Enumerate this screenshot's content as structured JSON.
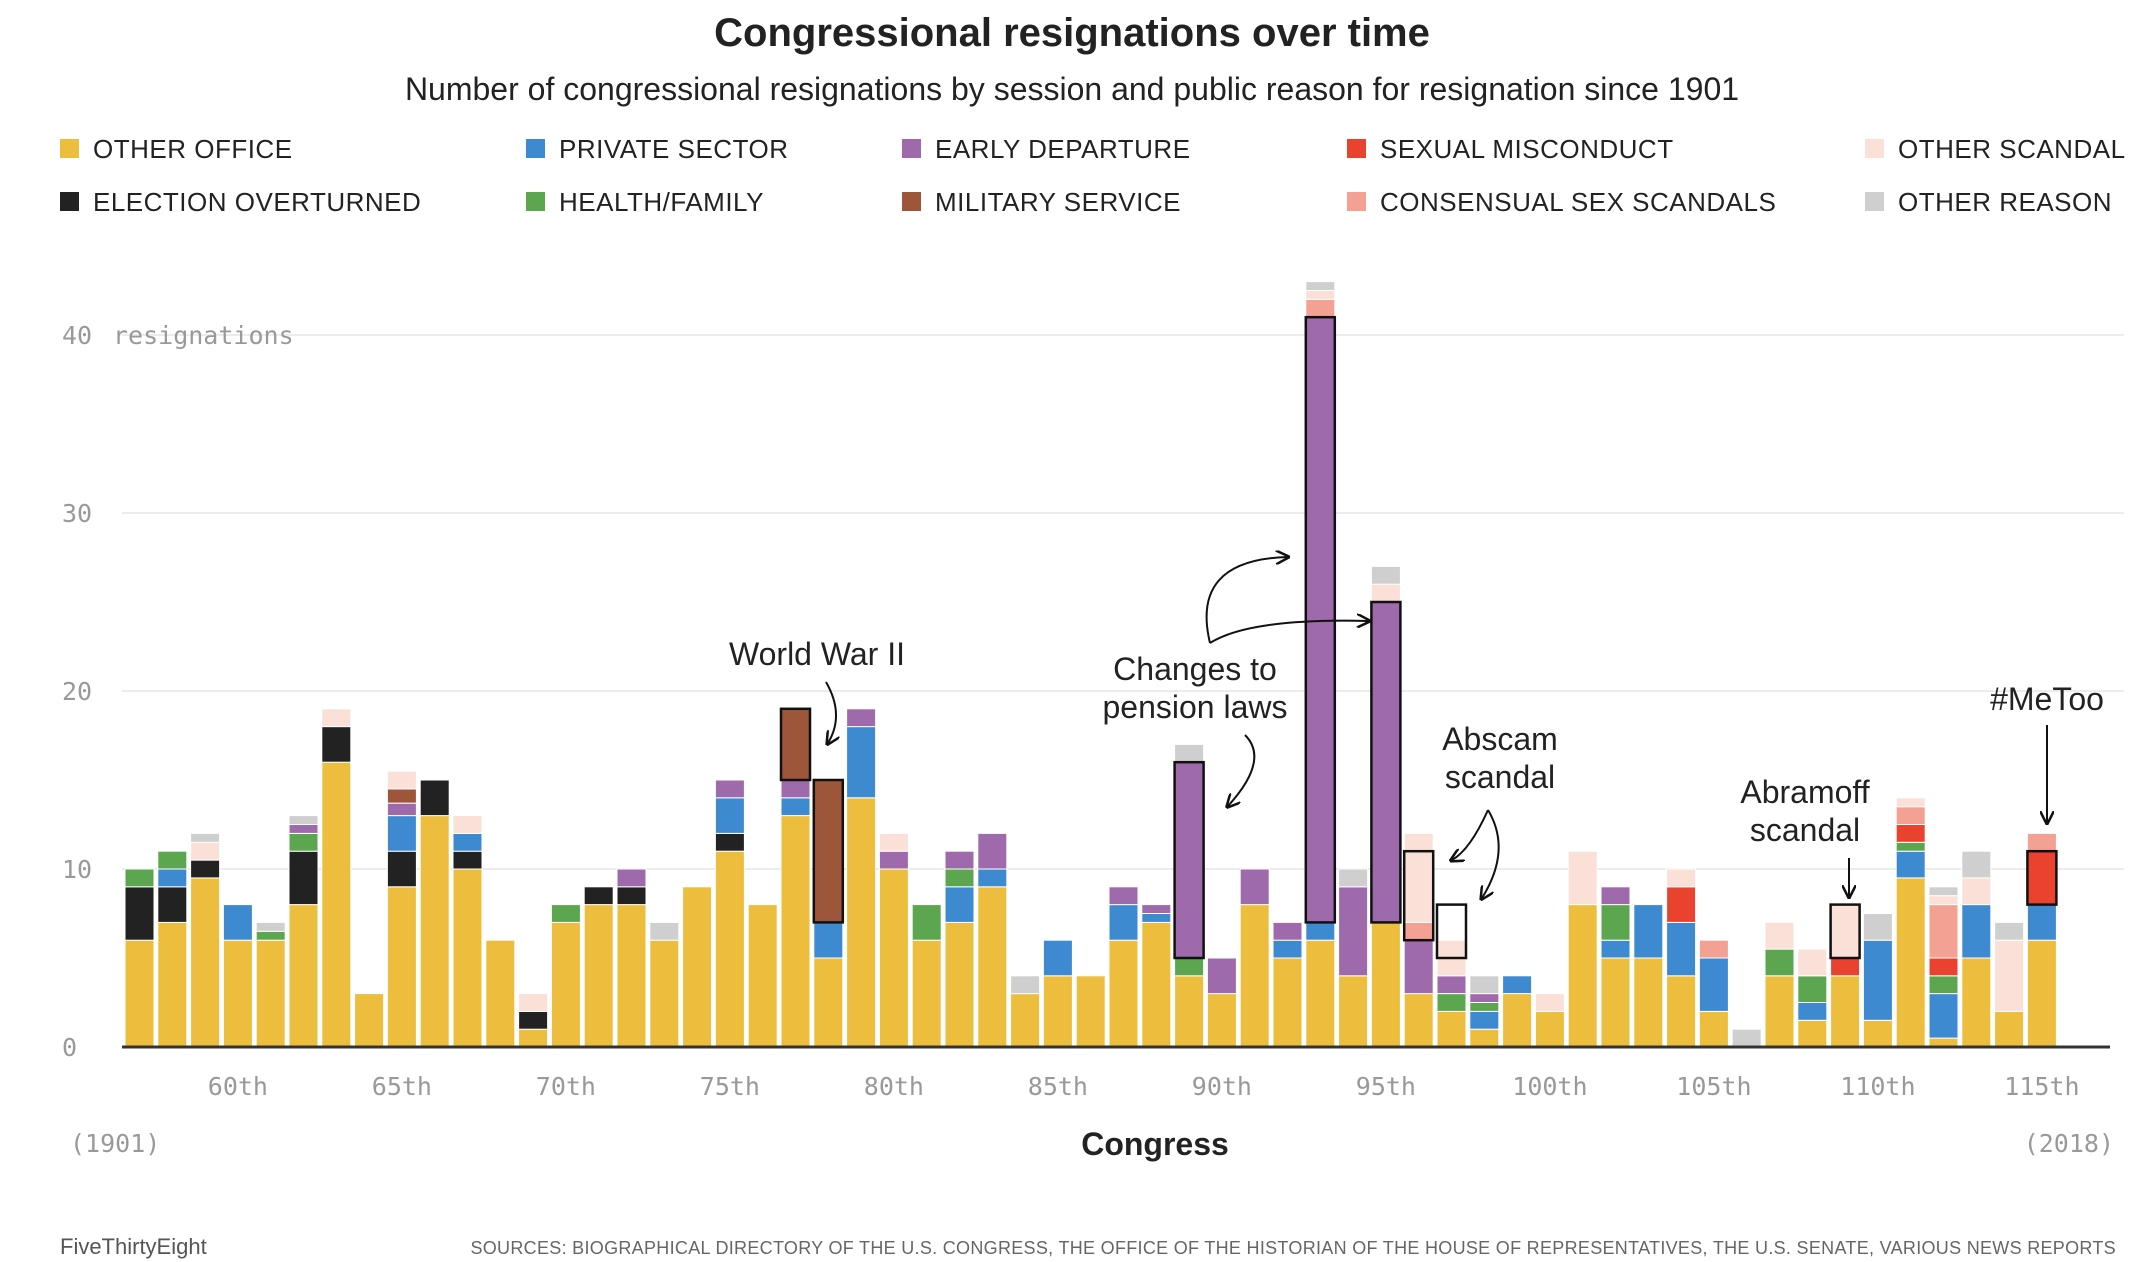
{
  "chart_data": {
    "type": "bar",
    "stacked": true,
    "title": "Congressional resignations over time",
    "subtitle": "Number of congressional resignations by session and public reason for resignation since 1901",
    "xlabel": "Congress",
    "ylabel_inline": "resignations",
    "ylim": [
      0,
      42
    ],
    "yticks": [
      0,
      10,
      20,
      30,
      40
    ],
    "start_label": "(1901)",
    "end_label": "(2018)",
    "x": [
      57,
      58,
      59,
      60,
      61,
      62,
      63,
      64,
      65,
      66,
      67,
      68,
      69,
      70,
      71,
      72,
      73,
      74,
      75,
      76,
      77,
      78,
      79,
      80,
      81,
      82,
      83,
      84,
      85,
      86,
      87,
      88,
      89,
      90,
      91,
      92,
      93,
      94,
      95,
      96,
      97,
      98,
      99,
      100,
      101,
      102,
      103,
      104,
      105,
      106,
      107,
      108,
      109,
      110,
      111,
      112,
      113,
      114,
      115
    ],
    "x_tick_labels": [
      {
        "x": 60,
        "label": "60th"
      },
      {
        "x": 65,
        "label": "65th"
      },
      {
        "x": 70,
        "label": "70th"
      },
      {
        "x": 75,
        "label": "75th"
      },
      {
        "x": 80,
        "label": "80th"
      },
      {
        "x": 85,
        "label": "85th"
      },
      {
        "x": 90,
        "label": "90th"
      },
      {
        "x": 95,
        "label": "95th"
      },
      {
        "x": 100,
        "label": "100th"
      },
      {
        "x": 105,
        "label": "105th"
      },
      {
        "x": 110,
        "label": "110th"
      },
      {
        "x": 115,
        "label": "115th"
      }
    ],
    "series": [
      {
        "key": "other_office",
        "name": "OTHER OFFICE",
        "color": "#edbd3e",
        "values": [
          6,
          7,
          9.5,
          6,
          6,
          8,
          16,
          3,
          9,
          13,
          10,
          6,
          1,
          7,
          8,
          8,
          6,
          9,
          11,
          8,
          13,
          5,
          14,
          10,
          6,
          7,
          9,
          3,
          4,
          4,
          6,
          7,
          4,
          3,
          8,
          5,
          6,
          4,
          7,
          3,
          2,
          1,
          3,
          2,
          8,
          5,
          5,
          4,
          2,
          0,
          4,
          1.5,
          4,
          1.5,
          9.5,
          0.5,
          5,
          2,
          6
        ]
      },
      {
        "key": "election_overturned",
        "name": "ELECTION OVERTURNED",
        "color": "#222222",
        "values": [
          3,
          2,
          1,
          0,
          0,
          3,
          2,
          0,
          2,
          2,
          1,
          0,
          1,
          0,
          1,
          1,
          0,
          0,
          1,
          0,
          0,
          0,
          0,
          0,
          0,
          0,
          0,
          0,
          0,
          0,
          0,
          0,
          0,
          0,
          0,
          0,
          0,
          0,
          0,
          0,
          0,
          0,
          0,
          0,
          0,
          0,
          0,
          0,
          0,
          0,
          0,
          0,
          0,
          0,
          0,
          0,
          0,
          0,
          0
        ]
      },
      {
        "key": "private_sector",
        "name": "PRIVATE SECTOR",
        "color": "#3d8ad0",
        "values": [
          0,
          1,
          0,
          2,
          0,
          0,
          0,
          0,
          2,
          0,
          1,
          0,
          0,
          0,
          0,
          0,
          0,
          0,
          2,
          0,
          1,
          2,
          4,
          0,
          0,
          2,
          1,
          0,
          2,
          0,
          2,
          0.5,
          0,
          0,
          0,
          1,
          1,
          0,
          0,
          0,
          0,
          1,
          1,
          0,
          0,
          1,
          3,
          3,
          3,
          0,
          0,
          1,
          0,
          4.5,
          1.5,
          2.5,
          3,
          0,
          2
        ]
      },
      {
        "key": "health_family",
        "name": "HEALTH/FAMILY",
        "color": "#5ba64f",
        "values": [
          1,
          1,
          0,
          0,
          0.5,
          1,
          0,
          0,
          0,
          0,
          0,
          0,
          0,
          1,
          0,
          0,
          0,
          0,
          0,
          0,
          0,
          0,
          0,
          0,
          2,
          1,
          0,
          0,
          0,
          0,
          0,
          0,
          1,
          0,
          0,
          0,
          0,
          0,
          0,
          0,
          1,
          0.5,
          0,
          0,
          0,
          2,
          0,
          0,
          0,
          0,
          1.5,
          1.5,
          0,
          0,
          0.5,
          1,
          0,
          0,
          0
        ]
      },
      {
        "key": "early_departure",
        "name": "EARLY DEPARTURE",
        "color": "#9f6aab",
        "values": [
          0,
          0,
          0,
          0,
          0,
          0.5,
          0,
          0,
          0.7,
          0,
          0,
          0,
          0,
          0,
          0,
          1,
          0,
          0,
          1,
          0,
          1,
          0,
          1,
          1,
          0,
          1,
          2,
          0,
          0,
          0,
          1,
          0.5,
          11,
          2,
          2,
          1,
          34,
          5,
          18,
          3,
          1,
          0.5,
          0,
          0,
          0,
          1,
          0,
          0,
          0,
          0,
          0,
          0,
          0,
          0,
          0,
          0,
          0,
          0,
          0
        ]
      },
      {
        "key": "military_service",
        "name": "MILITARY SERVICE",
        "color": "#9e563b",
        "values": [
          0,
          0,
          0,
          0,
          0,
          0,
          0,
          0,
          0.8,
          0,
          0,
          0,
          0,
          0,
          0,
          0,
          0,
          0,
          0,
          0,
          4,
          8,
          0,
          0,
          0,
          0,
          0,
          0,
          0,
          0,
          0,
          0,
          0,
          0,
          0,
          0,
          0,
          0,
          0,
          0,
          0,
          0,
          0,
          0,
          0,
          0,
          0,
          0,
          0,
          0,
          0,
          0,
          0,
          0,
          0,
          0,
          0,
          0,
          0
        ]
      },
      {
        "key": "sexual_misconduct",
        "name": "SEXUAL MISCONDUCT",
        "color": "#e9422e",
        "values": [
          0,
          0,
          0,
          0,
          0,
          0,
          0,
          0,
          0,
          0,
          0,
          0,
          0,
          0,
          0,
          0,
          0,
          0,
          0,
          0,
          0,
          0,
          0,
          0,
          0,
          0,
          0,
          0,
          0,
          0,
          0,
          0,
          0,
          0,
          0,
          0,
          0,
          0,
          0,
          0,
          0,
          0,
          0,
          0,
          0,
          0,
          0,
          2,
          0,
          0,
          0,
          0,
          1,
          0,
          1,
          1,
          0,
          0,
          3
        ]
      },
      {
        "key": "consensual_sex_scandals",
        "name": "CONSENSUAL SEX SCANDALS",
        "color": "#f2a192",
        "values": [
          0,
          0,
          0,
          0,
          0,
          0,
          0,
          0,
          0,
          0,
          0,
          0,
          0,
          0,
          0,
          0,
          0,
          0,
          0,
          0,
          0,
          0,
          0,
          0,
          0,
          0,
          0,
          0,
          0,
          0,
          0,
          0,
          0,
          0,
          0,
          0,
          1,
          0,
          0,
          1,
          0,
          0,
          0,
          0,
          0,
          0,
          0,
          0,
          1,
          0,
          0,
          0,
          0,
          0,
          1,
          3,
          0,
          0,
          1
        ]
      },
      {
        "key": "other_scandal",
        "name": "OTHER SCANDAL",
        "color": "#fae0d6",
        "values": [
          0,
          0,
          1,
          0,
          0,
          0,
          1,
          0,
          1,
          0,
          1,
          0,
          1,
          0,
          0,
          0,
          0,
          0,
          0,
          0,
          0,
          0,
          0,
          1,
          0,
          0,
          0,
          0,
          0,
          0,
          0,
          0,
          0,
          0,
          0,
          0,
          0.5,
          0,
          1,
          5,
          2,
          0,
          0,
          1,
          3,
          0,
          0,
          1,
          0,
          0,
          1.5,
          1.5,
          3,
          0,
          0.5,
          0.5,
          1.5,
          4,
          0
        ]
      },
      {
        "key": "other_reason",
        "name": "OTHER REASON",
        "color": "#cfcfcf",
        "values": [
          0,
          0,
          0.5,
          0,
          0.5,
          0.5,
          0,
          0,
          0,
          0,
          0,
          0,
          0,
          0,
          0,
          0,
          1,
          0,
          0,
          0,
          0,
          0,
          0,
          0,
          0,
          0,
          0,
          1,
          0,
          0,
          0,
          0,
          1,
          0,
          0,
          0,
          0.5,
          1,
          1,
          0,
          0,
          1,
          0,
          0,
          0,
          0,
          0,
          0,
          0,
          1,
          0,
          0,
          0,
          1.5,
          0,
          0.5,
          1.5,
          1,
          0
        ]
      }
    ],
    "highlight_boxes": [
      {
        "x": 77,
        "from": 15,
        "to": 19
      },
      {
        "x": 78,
        "from": 7,
        "to": 15
      },
      {
        "x": 89,
        "from": 5,
        "to": 16
      },
      {
        "x": 93,
        "from": 7,
        "to": 41
      },
      {
        "x": 95,
        "from": 7,
        "to": 25
      },
      {
        "x": 96,
        "from": 6,
        "to": 11
      },
      {
        "x": 97,
        "from": 5,
        "to": 8
      },
      {
        "x": 109,
        "from": 5,
        "to": 8
      },
      {
        "x": 115,
        "from": 8,
        "to": 11
      }
    ],
    "annotations": [
      {
        "key": "ww2",
        "lines": [
          "World War II"
        ]
      },
      {
        "key": "pension",
        "lines": [
          "Changes to",
          "pension laws"
        ]
      },
      {
        "key": "abscam",
        "lines": [
          "Abscam",
          "scandal"
        ]
      },
      {
        "key": "abramoff",
        "lines": [
          "Abramoff",
          "scandal"
        ]
      },
      {
        "key": "metoo",
        "lines": [
          "#MeToo"
        ]
      }
    ],
    "legend_placement": "top"
  },
  "footer": {
    "brand": "FiveThirtyEight",
    "sources": "SOURCES: BIOGRAPHICAL DIRECTORY OF THE U.S. CONGRESS, THE OFFICE OF THE HISTORIAN OF THE HOUSE OF REPRESENTATIVES, THE U.S. SENATE, VARIOUS NEWS REPORTS"
  }
}
